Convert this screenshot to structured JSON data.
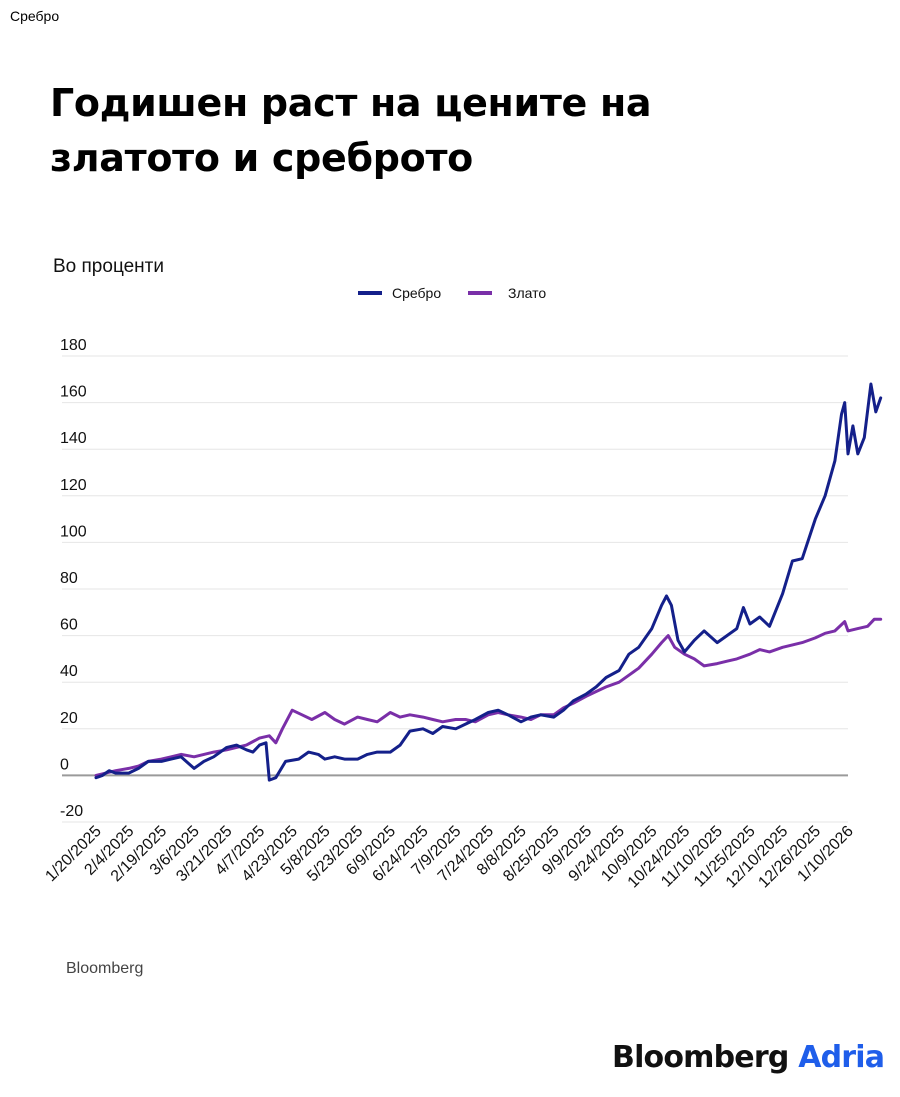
{
  "tab_label": "Сребро",
  "title_line1": "Годишен раст на цените на",
  "title_line2": "златото и среброто",
  "subtitle": "Во проценти",
  "source": "Bloomberg",
  "brand_primary": "Bloomberg",
  "brand_secondary": "Adria",
  "colors": {
    "silver": "#14208a",
    "gold": "#7a2fa8",
    "brand_accent": "#1f5eea",
    "grid": "#e6e6e6",
    "zero_line": "#9a9a9a"
  },
  "chart_data": {
    "type": "line",
    "title": "Годишен раст на цените на златото и среброто",
    "ylabel": "Во проценти",
    "xlabel": "",
    "ylim": [
      -20,
      180
    ],
    "yticks": [
      -20,
      0,
      20,
      40,
      60,
      80,
      100,
      120,
      140,
      160,
      180
    ],
    "grid": true,
    "legend_position": "top-center",
    "x_categories": [
      "1/20/2025",
      "2/4/2025",
      "2/19/2025",
      "3/6/2025",
      "3/21/2025",
      "4/7/2025",
      "4/23/2025",
      "5/8/2025",
      "5/23/2025",
      "6/9/2025",
      "6/24/2025",
      "7/9/2025",
      "7/24/2025",
      "8/8/2025",
      "8/25/2025",
      "9/9/2025",
      "9/24/2025",
      "10/9/2025",
      "10/24/2025",
      "11/10/2025",
      "11/25/2025",
      "12/10/2025",
      "12/26/2025",
      "1/10/2026"
    ],
    "series": [
      {
        "name": "Сребро",
        "color": "#14208a",
        "points": [
          [
            0,
            -1
          ],
          [
            0.2,
            0
          ],
          [
            0.4,
            2
          ],
          [
            0.6,
            1
          ],
          [
            0.8,
            1
          ],
          [
            1,
            1
          ],
          [
            1.3,
            3
          ],
          [
            1.6,
            6
          ],
          [
            2,
            6
          ],
          [
            2.3,
            7
          ],
          [
            2.6,
            8
          ],
          [
            3,
            3
          ],
          [
            3.3,
            6
          ],
          [
            3.6,
            8
          ],
          [
            4,
            12
          ],
          [
            4.3,
            13
          ],
          [
            4.6,
            11
          ],
          [
            4.8,
            10
          ],
          [
            5,
            13
          ],
          [
            5.2,
            14
          ],
          [
            5.3,
            -2
          ],
          [
            5.5,
            -1
          ],
          [
            5.8,
            6
          ],
          [
            6.2,
            7
          ],
          [
            6.5,
            10
          ],
          [
            6.8,
            9
          ],
          [
            7,
            7
          ],
          [
            7.3,
            8
          ],
          [
            7.6,
            7
          ],
          [
            8,
            7
          ],
          [
            8.3,
            9
          ],
          [
            8.6,
            10
          ],
          [
            9,
            10
          ],
          [
            9.3,
            13
          ],
          [
            9.6,
            19
          ],
          [
            10,
            20
          ],
          [
            10.3,
            18
          ],
          [
            10.6,
            21
          ],
          [
            11,
            20
          ],
          [
            11.3,
            22
          ],
          [
            11.6,
            24
          ],
          [
            12,
            27
          ],
          [
            12.3,
            28
          ],
          [
            12.6,
            26
          ],
          [
            13,
            23
          ],
          [
            13.3,
            25
          ],
          [
            13.6,
            26
          ],
          [
            14,
            25
          ],
          [
            14.3,
            28
          ],
          [
            14.6,
            32
          ],
          [
            15,
            35
          ],
          [
            15.3,
            38
          ],
          [
            15.6,
            42
          ],
          [
            16,
            45
          ],
          [
            16.3,
            52
          ],
          [
            16.6,
            55
          ],
          [
            17,
            63
          ],
          [
            17.3,
            73
          ],
          [
            17.45,
            77
          ],
          [
            17.6,
            73
          ],
          [
            17.8,
            58
          ],
          [
            18,
            53
          ],
          [
            18.3,
            58
          ],
          [
            18.6,
            62
          ],
          [
            19,
            57
          ],
          [
            19.3,
            60
          ],
          [
            19.6,
            63
          ],
          [
            19.8,
            72
          ],
          [
            20,
            65
          ],
          [
            20.3,
            68
          ],
          [
            20.6,
            64
          ],
          [
            21,
            78
          ],
          [
            21.3,
            92
          ],
          [
            21.6,
            93
          ],
          [
            22,
            110
          ],
          [
            22.3,
            120
          ],
          [
            22.6,
            135
          ],
          [
            22.8,
            155
          ],
          [
            22.9,
            160
          ],
          [
            23,
            138
          ],
          [
            23.15,
            150
          ],
          [
            23.3,
            138
          ],
          [
            23.5,
            145
          ],
          [
            23.7,
            168
          ],
          [
            23.85,
            156
          ],
          [
            24,
            162
          ]
        ]
      },
      {
        "name": "Злато",
        "color": "#7a2fa8",
        "points": [
          [
            0,
            0
          ],
          [
            0.3,
            1
          ],
          [
            0.6,
            2
          ],
          [
            1,
            3
          ],
          [
            1.3,
            4
          ],
          [
            1.6,
            6
          ],
          [
            2,
            7
          ],
          [
            2.3,
            8
          ],
          [
            2.6,
            9
          ],
          [
            3,
            8
          ],
          [
            3.3,
            9
          ],
          [
            3.6,
            10
          ],
          [
            4,
            11
          ],
          [
            4.3,
            12
          ],
          [
            4.6,
            13
          ],
          [
            5,
            16
          ],
          [
            5.3,
            17
          ],
          [
            5.5,
            14
          ],
          [
            5.7,
            20
          ],
          [
            6,
            28
          ],
          [
            6.3,
            26
          ],
          [
            6.6,
            24
          ],
          [
            7,
            27
          ],
          [
            7.3,
            24
          ],
          [
            7.6,
            22
          ],
          [
            8,
            25
          ],
          [
            8.3,
            24
          ],
          [
            8.6,
            23
          ],
          [
            9,
            27
          ],
          [
            9.3,
            25
          ],
          [
            9.6,
            26
          ],
          [
            10,
            25
          ],
          [
            10.3,
            24
          ],
          [
            10.6,
            23
          ],
          [
            11,
            24
          ],
          [
            11.3,
            24
          ],
          [
            11.6,
            23
          ],
          [
            12,
            26
          ],
          [
            12.3,
            27
          ],
          [
            12.6,
            26
          ],
          [
            13,
            25
          ],
          [
            13.3,
            24
          ],
          [
            13.6,
            26
          ],
          [
            14,
            26
          ],
          [
            14.3,
            29
          ],
          [
            14.6,
            31
          ],
          [
            15,
            34
          ],
          [
            15.3,
            36
          ],
          [
            15.6,
            38
          ],
          [
            16,
            40
          ],
          [
            16.3,
            43
          ],
          [
            16.6,
            46
          ],
          [
            17,
            52
          ],
          [
            17.3,
            57
          ],
          [
            17.5,
            60
          ],
          [
            17.7,
            55
          ],
          [
            18,
            52
          ],
          [
            18.3,
            50
          ],
          [
            18.6,
            47
          ],
          [
            19,
            48
          ],
          [
            19.3,
            49
          ],
          [
            19.6,
            50
          ],
          [
            20,
            52
          ],
          [
            20.3,
            54
          ],
          [
            20.6,
            53
          ],
          [
            21,
            55
          ],
          [
            21.3,
            56
          ],
          [
            21.6,
            57
          ],
          [
            22,
            59
          ],
          [
            22.3,
            61
          ],
          [
            22.6,
            62
          ],
          [
            22.9,
            66
          ],
          [
            23,
            62
          ],
          [
            23.3,
            63
          ],
          [
            23.6,
            64
          ],
          [
            23.8,
            67
          ],
          [
            24,
            67
          ]
        ]
      }
    ]
  }
}
